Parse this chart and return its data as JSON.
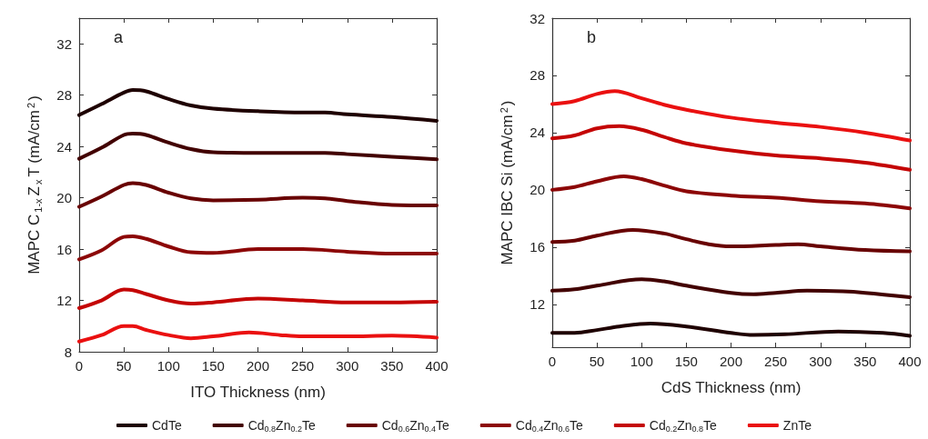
{
  "chart_data": [
    {
      "type": "line",
      "xlabel": "ITO Thickness (nm)",
      "ylabel": "MAPC C$_{1-x}$Z$_{x}$T (mA/cm$^{2}$)",
      "annotations": [
        "a"
      ],
      "xlim": [
        0,
        400
      ],
      "xticks": [
        0,
        50,
        100,
        150,
        200,
        250,
        300,
        350,
        400
      ],
      "ylim": [
        8,
        34
      ],
      "yticks": [
        8,
        12,
        16,
        20,
        24,
        28,
        32
      ],
      "grid": false,
      "legend": "bottom",
      "marker": "none",
      "line_style": "solid",
      "series": [
        {
          "name": "CdTe",
          "color": "#1e0000",
          "x": [
            0,
            25,
            50,
            60,
            75,
            100,
            125,
            150,
            200,
            250,
            275,
            300,
            350,
            400
          ],
          "values": [
            26.45,
            27.3,
            28.2,
            28.4,
            28.3,
            27.7,
            27.2,
            26.95,
            26.75,
            26.65,
            26.65,
            26.5,
            26.3,
            26.0
          ]
        },
        {
          "name": "Cd$_{0.8}$Zn$_{0.2}$Te",
          "color": "#420000",
          "x": [
            0,
            25,
            50,
            60,
            75,
            100,
            125,
            150,
            200,
            250,
            275,
            300,
            350,
            400
          ],
          "values": [
            23.05,
            23.9,
            24.9,
            25.0,
            24.9,
            24.3,
            23.8,
            23.55,
            23.5,
            23.5,
            23.5,
            23.4,
            23.2,
            23.0
          ]
        },
        {
          "name": "Cd$_{0.6}$Zn$_{0.4}$Te",
          "color": "#680000",
          "x": [
            0,
            25,
            50,
            60,
            75,
            100,
            125,
            150,
            200,
            250,
            275,
            300,
            350,
            400
          ],
          "values": [
            19.3,
            20.1,
            21.0,
            21.15,
            21.0,
            20.4,
            19.95,
            19.8,
            19.85,
            20.0,
            19.95,
            19.75,
            19.45,
            19.4
          ]
        },
        {
          "name": "Cd$_{0.4}$Zn$_{0.6}$Te",
          "color": "#8c0606",
          "x": [
            0,
            25,
            50,
            60,
            75,
            100,
            125,
            150,
            200,
            250,
            300,
            350,
            400
          ],
          "values": [
            15.2,
            15.9,
            16.95,
            17.0,
            16.8,
            16.2,
            15.75,
            15.7,
            16.0,
            16.0,
            15.8,
            15.65,
            15.65
          ]
        },
        {
          "name": "Cd$_{0.2}$Zn$_{0.8}$Te",
          "color": "#c40404",
          "x": [
            0,
            25,
            50,
            60,
            75,
            100,
            125,
            150,
            200,
            250,
            300,
            350,
            400
          ],
          "values": [
            11.4,
            12.0,
            12.85,
            12.8,
            12.5,
            12.0,
            11.75,
            11.85,
            12.15,
            12.0,
            11.85,
            11.85,
            11.9
          ]
        },
        {
          "name": "ZnTe",
          "color": "#ea1010",
          "x": [
            0,
            25,
            50,
            60,
            75,
            100,
            125,
            150,
            190,
            225,
            250,
            300,
            350,
            400
          ],
          "values": [
            8.8,
            9.3,
            10.0,
            10.0,
            9.7,
            9.3,
            9.05,
            9.2,
            9.5,
            9.3,
            9.2,
            9.2,
            9.25,
            9.1
          ]
        }
      ]
    },
    {
      "type": "line",
      "xlabel": "CdS Thickness (nm)",
      "ylabel": "MAPC IBC Si (mA/cm$^{2}$)",
      "annotations": [
        "b"
      ],
      "xlim": [
        0,
        400
      ],
      "xticks": [
        0,
        50,
        100,
        150,
        200,
        250,
        300,
        350,
        400
      ],
      "ylim": [
        9,
        32
      ],
      "yticks": [
        12,
        16,
        20,
        24,
        28,
        32
      ],
      "grid": false,
      "marker": "none",
      "line_style": "solid",
      "series": [
        {
          "color": "#1e0000",
          "x": [
            0,
            25,
            50,
            75,
            110,
            150,
            200,
            225,
            260,
            320,
            370,
            400
          ],
          "values": [
            10.0,
            10.0,
            10.2,
            10.45,
            10.65,
            10.45,
            10.0,
            9.85,
            9.9,
            10.1,
            10.0,
            9.8
          ]
        },
        {
          "color": "#420000",
          "x": [
            0,
            25,
            50,
            100,
            125,
            150,
            200,
            225,
            250,
            285,
            325,
            350,
            400
          ],
          "values": [
            12.95,
            13.05,
            13.3,
            13.75,
            13.6,
            13.3,
            12.8,
            12.7,
            12.8,
            12.95,
            12.9,
            12.8,
            12.5
          ]
        },
        {
          "color": "#680000",
          "x": [
            0,
            25,
            50,
            90,
            125,
            150,
            175,
            200,
            250,
            275,
            300,
            350,
            400
          ],
          "values": [
            16.35,
            16.45,
            16.8,
            17.2,
            16.95,
            16.55,
            16.2,
            16.05,
            16.15,
            16.2,
            16.05,
            15.8,
            15.7
          ]
        },
        {
          "color": "#8c0606",
          "x": [
            0,
            25,
            50,
            80,
            100,
            125,
            150,
            200,
            250,
            300,
            350,
            400
          ],
          "values": [
            20.0,
            20.2,
            20.6,
            20.95,
            20.75,
            20.3,
            19.9,
            19.6,
            19.45,
            19.2,
            19.05,
            18.7
          ]
        },
        {
          "color": "#c40404",
          "x": [
            0,
            25,
            50,
            75,
            100,
            125,
            150,
            200,
            250,
            300,
            350,
            400
          ],
          "values": [
            23.6,
            23.8,
            24.3,
            24.45,
            24.2,
            23.7,
            23.25,
            22.75,
            22.4,
            22.2,
            21.9,
            21.4
          ]
        },
        {
          "color": "#ea1010",
          "x": [
            0,
            25,
            50,
            70,
            100,
            125,
            150,
            200,
            250,
            300,
            350,
            400
          ],
          "values": [
            26.0,
            26.2,
            26.7,
            26.9,
            26.4,
            25.95,
            25.6,
            25.05,
            24.7,
            24.4,
            24.0,
            23.45
          ]
        }
      ]
    }
  ]
}
